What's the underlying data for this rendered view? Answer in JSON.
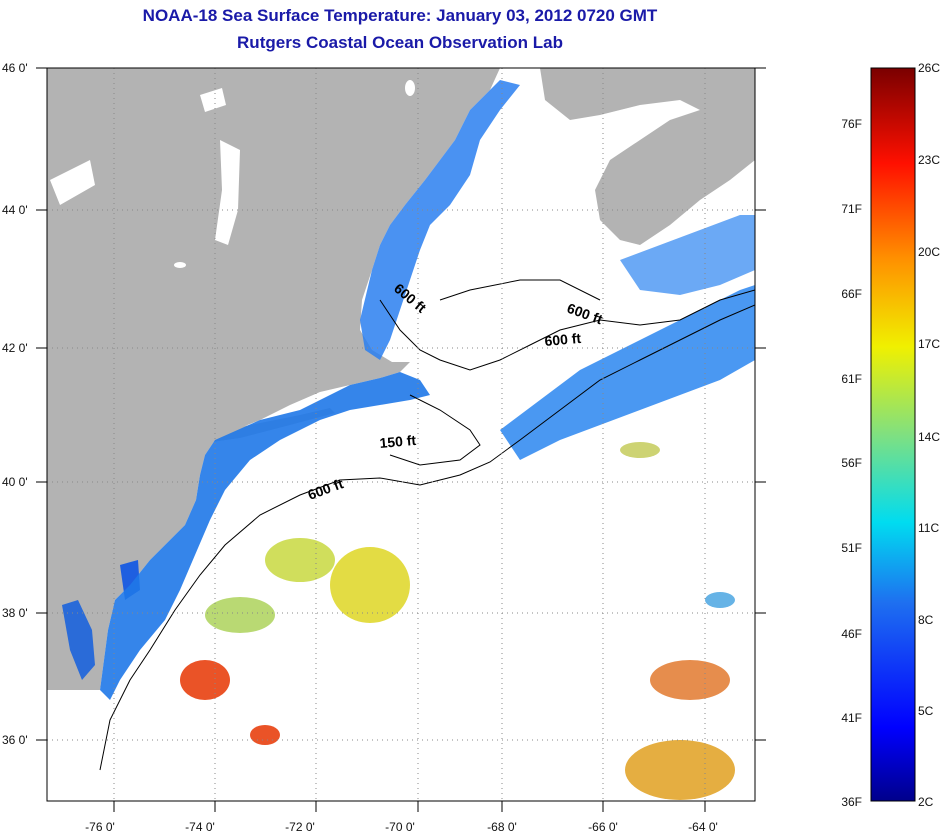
{
  "title": {
    "line1": "NOAA-18 Sea Surface Temperature:  January 03, 2012 0720 GMT",
    "line2": "Rutgers Coastal Ocean Observation Lab"
  },
  "map": {
    "lon_range": [
      -77,
      -63
    ],
    "lat_range": [
      35,
      46
    ],
    "lon_labels": [
      {
        "value": -76,
        "text": "-76 0'"
      },
      {
        "value": -74,
        "text": "-74 0'"
      },
      {
        "value": -72,
        "text": "-72 0'"
      },
      {
        "value": -70,
        "text": "-70 0'"
      },
      {
        "value": -68,
        "text": "-68 0'"
      },
      {
        "value": -66,
        "text": "-66 0'"
      },
      {
        "value": -64,
        "text": "-64 0'"
      }
    ],
    "lat_labels": [
      {
        "value": 46,
        "text": "46 0'"
      },
      {
        "value": 44,
        "text": "44 0'"
      },
      {
        "value": 42,
        "text": "42 0'"
      },
      {
        "value": 40,
        "text": "40 0'"
      },
      {
        "value": 38,
        "text": "38 0'"
      },
      {
        "value": 36,
        "text": "36 0'"
      }
    ],
    "contour_labels": [
      {
        "text": "600 ft",
        "lon": -69.6,
        "lat": 42.8
      },
      {
        "text": "600 ft",
        "lon": -67.1,
        "lat": 42.5
      },
      {
        "text": "600 ft",
        "lon": -67.6,
        "lat": 42.1
      },
      {
        "text": "150 ft",
        "lon": -69.9,
        "lat": 40.6
      },
      {
        "text": "600 ft",
        "lon": -71.5,
        "lat": 39.9
      }
    ],
    "colors": {
      "land": "#b3b3b3",
      "ocean_nodata": "#ffffff",
      "grid": "#888888"
    }
  },
  "colorbar": {
    "fahrenheit_labels": [
      "36F",
      "41F",
      "46F",
      "51F",
      "56F",
      "61F",
      "66F",
      "71F",
      "76F"
    ],
    "celsius_labels": [
      "2C",
      "5C",
      "8C",
      "11C",
      "14C",
      "17C",
      "20C",
      "23C",
      "26C"
    ]
  }
}
